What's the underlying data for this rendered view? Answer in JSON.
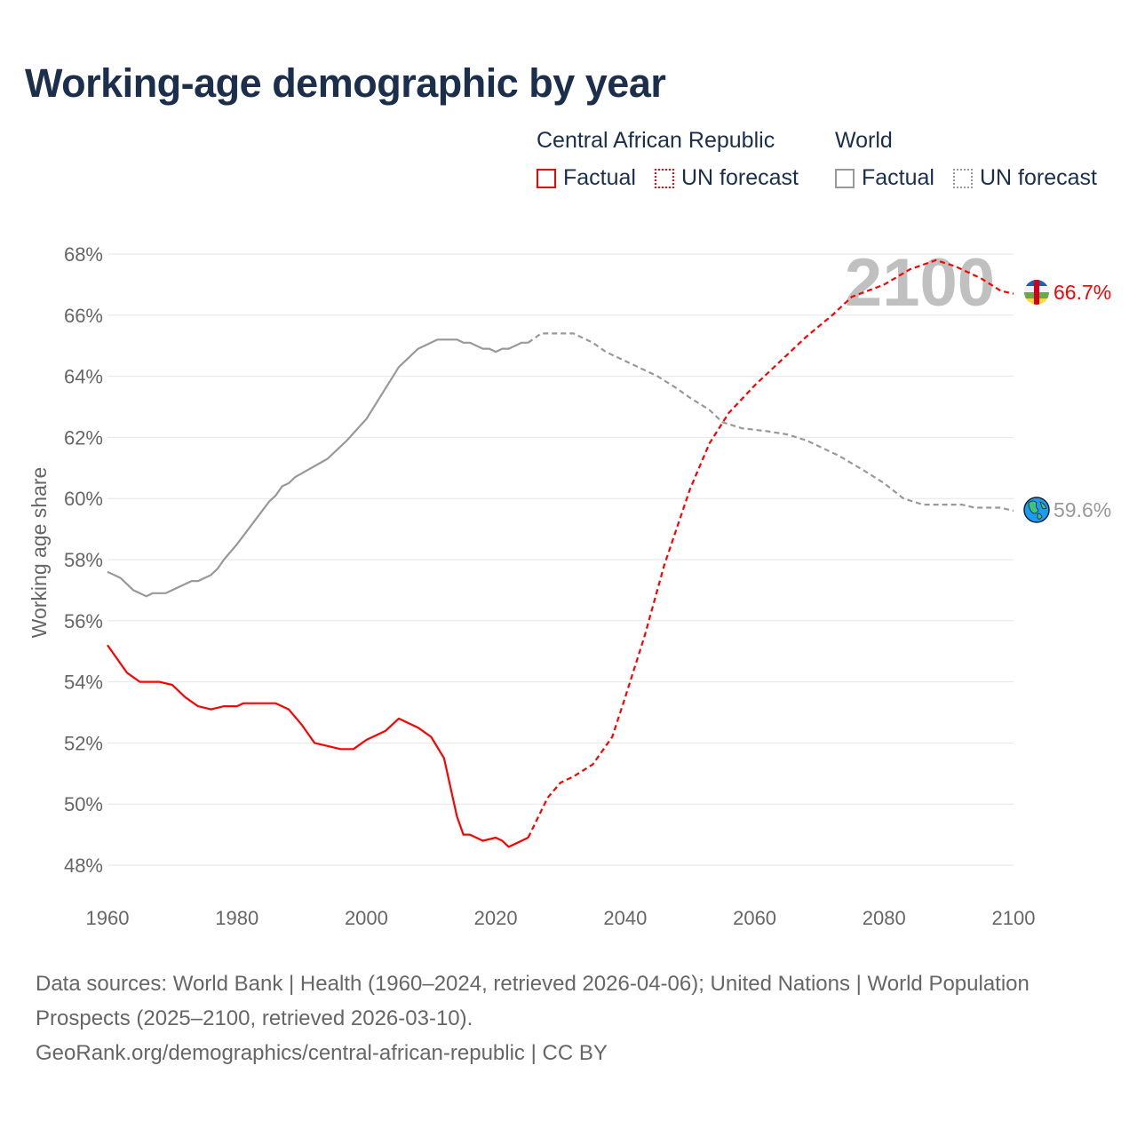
{
  "title": "Working-age demographic by year",
  "legend": {
    "groups": [
      {
        "name": "Central African Republic",
        "factual": "Factual",
        "forecast": "UN forecast",
        "color": "#ff0000"
      },
      {
        "name": "World",
        "factual": "Factual",
        "forecast": "UN forecast",
        "color": "#999999"
      }
    ]
  },
  "chart_data": {
    "type": "line",
    "title": "Working-age demographic by year",
    "xlabel": "",
    "ylabel": "Working age share",
    "xlim": [
      1960,
      2100
    ],
    "ylim": [
      47.5,
      68
    ],
    "xticks": [
      "1960",
      "1980",
      "2000",
      "2020",
      "2040",
      "2060",
      "2080",
      "2100"
    ],
    "yticks": [
      "48%",
      "50%",
      "52%",
      "54%",
      "56%",
      "58%",
      "60%",
      "62%",
      "64%",
      "66%",
      "68%"
    ],
    "year_watermark": "2100",
    "grid": true,
    "series": [
      {
        "name": "Central African Republic - Factual",
        "color": "#ff0000",
        "dashed": false,
        "x": [
          1960,
          1963,
          1965,
          1968,
          1970,
          1972,
          1974,
          1976,
          1978,
          1980,
          1981,
          1986,
          1988,
          1990,
          1992,
          1994,
          1996,
          1998,
          2000,
          2003,
          2005,
          2008,
          2010,
          2012,
          2014,
          2015,
          2016,
          2018,
          2020,
          2021,
          2022,
          2024,
          2025
        ],
        "y": [
          55.2,
          54.3,
          54.0,
          54.0,
          53.9,
          53.5,
          53.2,
          53.1,
          53.2,
          53.2,
          53.3,
          53.3,
          53.1,
          52.6,
          52.0,
          51.9,
          51.8,
          51.8,
          52.1,
          52.4,
          52.8,
          52.5,
          52.2,
          51.5,
          49.6,
          49.0,
          49.0,
          48.8,
          48.9,
          48.8,
          48.6,
          48.8,
          48.9
        ]
      },
      {
        "name": "Central African Republic - UN forecast",
        "color": "#ff0000",
        "dashed": true,
        "x": [
          2025,
          2028,
          2030,
          2032,
          2035,
          2038,
          2040,
          2043,
          2046,
          2050,
          2053,
          2056,
          2060,
          2063,
          2068,
          2072,
          2075,
          2080,
          2084,
          2088,
          2091,
          2095,
          2098,
          2100
        ],
        "y": [
          48.9,
          50.2,
          50.7,
          50.9,
          51.3,
          52.2,
          53.5,
          55.5,
          57.8,
          60.3,
          61.8,
          62.8,
          63.7,
          64.3,
          65.3,
          66.0,
          66.6,
          67.0,
          67.5,
          67.8,
          67.6,
          67.2,
          66.8,
          66.7
        ],
        "end_label": "66.7%"
      },
      {
        "name": "World - Factual",
        "color": "#999999",
        "dashed": false,
        "x": [
          1960,
          1962,
          1964,
          1966,
          1967,
          1969,
          1973,
          1974,
          1976,
          1977,
          1978,
          1980,
          1985,
          1986,
          1987,
          1988,
          1989,
          1994,
          1997,
          2000,
          2005,
          2008,
          2011,
          2014,
          2015,
          2016,
          2018,
          2019,
          2020,
          2021,
          2022,
          2024,
          2025
        ],
        "y": [
          57.6,
          57.4,
          57.0,
          56.8,
          56.9,
          56.9,
          57.3,
          57.3,
          57.5,
          57.7,
          58.0,
          58.5,
          59.9,
          60.1,
          60.4,
          60.5,
          60.7,
          61.3,
          61.9,
          62.6,
          64.3,
          64.9,
          65.2,
          65.2,
          65.1,
          65.1,
          64.9,
          64.9,
          64.8,
          64.9,
          64.9,
          65.1,
          65.1
        ]
      },
      {
        "name": "World - UN forecast",
        "color": "#999999",
        "dashed": true,
        "x": [
          2025,
          2027,
          2032,
          2035,
          2037,
          2040,
          2045,
          2048,
          2050,
          2053,
          2055,
          2058,
          2062,
          2065,
          2068,
          2073,
          2077,
          2080,
          2083,
          2086,
          2092,
          2094,
          2098,
          2100
        ],
        "y": [
          65.1,
          65.4,
          65.4,
          65.1,
          64.8,
          64.5,
          64.0,
          63.6,
          63.3,
          62.9,
          62.5,
          62.3,
          62.2,
          62.1,
          61.9,
          61.4,
          60.9,
          60.5,
          60.0,
          59.8,
          59.8,
          59.7,
          59.7,
          59.6
        ],
        "end_label": "59.6%"
      }
    ]
  },
  "footer": {
    "sources": "Data sources: World Bank | Health (1960–2024, retrieved 2026-04-06); United Nations | World Population Prospects (2025–2100, retrieved 2026-03-10).",
    "link": "GeoRank.org/demographics/central-african-republic | CC BY"
  }
}
